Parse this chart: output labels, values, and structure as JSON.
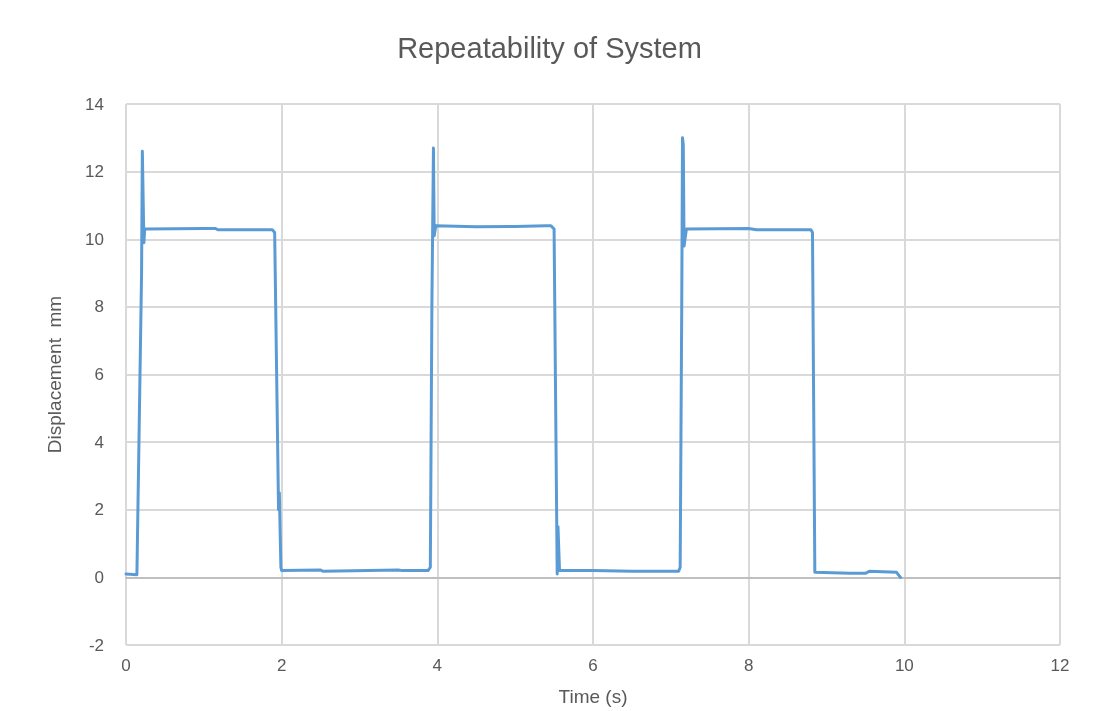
{
  "chart_data": {
    "type": "line",
    "title": "Repeatability of System",
    "xlabel": "Time (s)",
    "ylabel": "Displacement  mm",
    "xlim": [
      0,
      12
    ],
    "xticks": [
      0,
      2,
      4,
      6,
      8,
      10,
      12
    ],
    "ylim": [
      -2,
      14
    ],
    "yticks": [
      -2,
      0,
      2,
      4,
      6,
      8,
      10,
      12,
      14
    ],
    "grid": true,
    "marker": "none",
    "line_style": "solid",
    "series": [
      {
        "color": "#5b9bd5",
        "x": [
          0,
          0.14,
          0.2,
          0.21,
          0.23,
          0.24,
          0.26,
          1.0,
          1.15,
          1.18,
          1.88,
          1.91,
          1.96,
          1.97,
          1.99,
          2.0,
          2.5,
          2.53,
          3.5,
          3.55,
          3.88,
          3.91,
          3.93,
          3.95,
          3.96,
          3.98,
          4.5,
          5.0,
          5.4,
          5.46,
          5.5,
          5.53,
          5.54,
          5.55,
          5.57,
          6.0,
          6.5,
          7.1,
          7.12,
          7.14,
          7.15,
          7.16,
          7.17,
          7.2,
          8.0,
          8.1,
          8.8,
          8.82,
          8.85,
          9.3,
          9.5,
          9.55,
          9.9,
          9.95
        ],
        "values": [
          0.1,
          0.08,
          9,
          12.6,
          9.9,
          10.3,
          10.3,
          10.32,
          10.32,
          10.28,
          10.28,
          10.2,
          2.0,
          2.5,
          0.3,
          0.2,
          0.22,
          0.18,
          0.22,
          0.2,
          0.2,
          0.3,
          8,
          12.7,
          10.1,
          10.4,
          10.37,
          10.38,
          10.4,
          10.4,
          10.3,
          2.6,
          0.1,
          1.5,
          0.2,
          0.2,
          0.18,
          0.18,
          0.3,
          8,
          13.0,
          12.8,
          9.8,
          10.3,
          10.32,
          10.28,
          10.28,
          10.2,
          0.15,
          0.12,
          0.12,
          0.18,
          0.15,
          0
        ]
      }
    ]
  }
}
